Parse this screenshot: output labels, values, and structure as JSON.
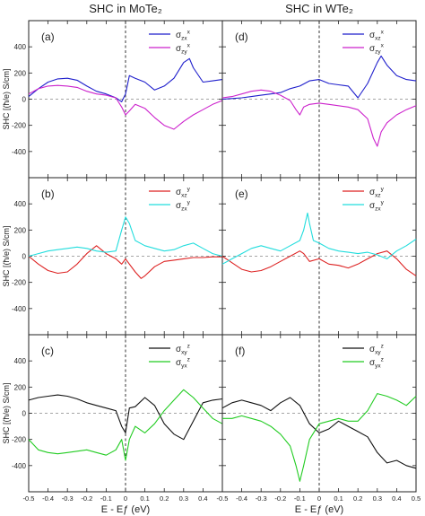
{
  "figure": {
    "col_titles": [
      "SHC in MoTe₂",
      "SHC in WTe₂"
    ],
    "ylabel": "SHC [(ħ/e) S/cm]",
    "xlabel": "E - Eƒ (eV)"
  },
  "chart_data": [
    {
      "type": "line",
      "panel": "(a)",
      "material": "MoTe2",
      "xlim": [
        -0.5,
        0.5
      ],
      "ylim": [
        -600,
        600
      ],
      "xticks": [
        -0.5,
        -0.4,
        -0.3,
        -0.2,
        -0.1,
        0.0,
        0.1,
        0.2,
        0.3,
        0.4
      ],
      "yticks": [
        -400,
        -200,
        0,
        200,
        400
      ],
      "series": [
        {
          "name": "σzx^x",
          "color": "#1f1fcc",
          "x": [
            -0.5,
            -0.45,
            -0.4,
            -0.35,
            -0.3,
            -0.25,
            -0.2,
            -0.15,
            -0.1,
            -0.05,
            -0.02,
            0,
            0.02,
            0.05,
            0.1,
            0.15,
            0.2,
            0.25,
            0.3,
            0.33,
            0.35,
            0.4,
            0.45,
            0.5
          ],
          "y": [
            20,
            80,
            130,
            155,
            160,
            145,
            100,
            60,
            40,
            10,
            -20,
            40,
            180,
            160,
            130,
            70,
            100,
            160,
            280,
            310,
            240,
            130,
            140,
            150
          ]
        },
        {
          "name": "σzy^x",
          "color": "#cc22cc",
          "x": [
            -0.5,
            -0.45,
            -0.4,
            -0.35,
            -0.3,
            -0.25,
            -0.2,
            -0.15,
            -0.1,
            -0.05,
            -0.02,
            0,
            0.02,
            0.05,
            0.1,
            0.15,
            0.2,
            0.25,
            0.3,
            0.35,
            0.4,
            0.45,
            0.5
          ],
          "y": [
            40,
            80,
            100,
            105,
            100,
            90,
            60,
            40,
            30,
            10,
            -60,
            -120,
            -90,
            -40,
            -70,
            -140,
            -200,
            -230,
            -170,
            -120,
            -80,
            -40,
            -10
          ]
        }
      ]
    },
    {
      "type": "line",
      "panel": "(d)",
      "material": "WTe2",
      "xlim": [
        -0.5,
        0.5
      ],
      "ylim": [
        -600,
        600
      ],
      "xticks": [
        -0.5,
        -0.4,
        -0.3,
        -0.2,
        -0.1,
        0.0,
        0.1,
        0.2,
        0.3,
        0.4,
        0.5
      ],
      "yticks": [
        -400,
        -200,
        0,
        200,
        400
      ],
      "series": [
        {
          "name": "σxz^x",
          "color": "#1f1fcc",
          "x": [
            -0.5,
            -0.45,
            -0.4,
            -0.35,
            -0.3,
            -0.25,
            -0.2,
            -0.15,
            -0.1,
            -0.05,
            0,
            0.05,
            0.1,
            0.15,
            0.2,
            0.25,
            0.3,
            0.32,
            0.35,
            0.4,
            0.45,
            0.5
          ],
          "y": [
            0,
            5,
            10,
            20,
            30,
            40,
            50,
            80,
            100,
            140,
            150,
            120,
            110,
            100,
            10,
            120,
            280,
            330,
            260,
            180,
            150,
            140
          ]
        },
        {
          "name": "σzy^x",
          "color": "#cc22cc",
          "x": [
            -0.5,
            -0.45,
            -0.4,
            -0.35,
            -0.3,
            -0.25,
            -0.2,
            -0.15,
            -0.12,
            -0.1,
            -0.08,
            -0.05,
            0,
            0.05,
            0.1,
            0.15,
            0.2,
            0.25,
            0.28,
            0.3,
            0.32,
            0.35,
            0.4,
            0.45,
            0.5
          ],
          "y": [
            10,
            20,
            40,
            60,
            70,
            60,
            30,
            -10,
            -80,
            -120,
            -60,
            -40,
            -30,
            -40,
            -50,
            -60,
            -80,
            -150,
            -300,
            -360,
            -250,
            -180,
            -120,
            -80,
            -50
          ]
        }
      ]
    },
    {
      "type": "line",
      "panel": "(b)",
      "material": "MoTe2",
      "xlim": [
        -0.5,
        0.5
      ],
      "ylim": [
        -600,
        600
      ],
      "xticks": [
        -0.5,
        -0.4,
        -0.3,
        -0.2,
        -0.1,
        0.0,
        0.1,
        0.2,
        0.3,
        0.4
      ],
      "yticks": [
        -400,
        -200,
        0,
        200,
        400
      ],
      "series": [
        {
          "name": "σxz^y",
          "color": "#dd2222",
          "x": [
            -0.5,
            -0.45,
            -0.4,
            -0.35,
            -0.3,
            -0.25,
            -0.2,
            -0.15,
            -0.1,
            -0.05,
            -0.02,
            0,
            0.02,
            0.05,
            0.08,
            0.1,
            0.15,
            0.2,
            0.25,
            0.3,
            0.35,
            0.4,
            0.45,
            0.5
          ],
          "y": [
            0,
            -60,
            -110,
            -130,
            -120,
            -60,
            20,
            80,
            20,
            -20,
            -60,
            -20,
            -60,
            -120,
            -170,
            -150,
            -80,
            -40,
            -30,
            -20,
            -10,
            -10,
            -5,
            -5
          ]
        },
        {
          "name": "σzx^y",
          "color": "#22dddd",
          "x": [
            -0.5,
            -0.45,
            -0.4,
            -0.35,
            -0.3,
            -0.25,
            -0.2,
            -0.15,
            -0.1,
            -0.05,
            -0.02,
            0,
            0.02,
            0.05,
            0.1,
            0.15,
            0.2,
            0.25,
            0.3,
            0.35,
            0.4,
            0.45,
            0.5
          ],
          "y": [
            0,
            20,
            40,
            50,
            60,
            70,
            60,
            40,
            30,
            40,
            200,
            300,
            250,
            120,
            80,
            60,
            40,
            50,
            80,
            100,
            60,
            20,
            0
          ]
        }
      ]
    },
    {
      "type": "line",
      "panel": "(e)",
      "material": "WTe2",
      "xlim": [
        -0.5,
        0.5
      ],
      "ylim": [
        -600,
        600
      ],
      "xticks": [
        -0.5,
        -0.4,
        -0.3,
        -0.2,
        -0.1,
        0.0,
        0.1,
        0.2,
        0.3,
        0.4,
        0.5
      ],
      "yticks": [
        -400,
        -200,
        0,
        200,
        400
      ],
      "series": [
        {
          "name": "σxz^y",
          "color": "#dd2222",
          "x": [
            -0.5,
            -0.45,
            -0.4,
            -0.35,
            -0.3,
            -0.25,
            -0.2,
            -0.15,
            -0.1,
            -0.08,
            -0.05,
            0,
            0.05,
            0.1,
            0.15,
            0.2,
            0.25,
            0.3,
            0.35,
            0.4,
            0.45,
            0.5
          ],
          "y": [
            0,
            -50,
            -100,
            -120,
            -110,
            -80,
            -40,
            0,
            40,
            20,
            -40,
            -20,
            -60,
            -70,
            -90,
            -60,
            -20,
            20,
            40,
            -20,
            -100,
            -150
          ]
        },
        {
          "name": "σzx^y",
          "color": "#22dddd",
          "x": [
            -0.5,
            -0.45,
            -0.4,
            -0.35,
            -0.3,
            -0.25,
            -0.2,
            -0.15,
            -0.1,
            -0.08,
            -0.06,
            -0.05,
            -0.03,
            0,
            0.05,
            0.1,
            0.15,
            0.2,
            0.25,
            0.3,
            0.35,
            0.4,
            0.45,
            0.5
          ],
          "y": [
            -60,
            -20,
            20,
            60,
            80,
            60,
            40,
            80,
            120,
            200,
            330,
            250,
            120,
            100,
            60,
            40,
            30,
            20,
            30,
            10,
            -20,
            40,
            80,
            130
          ]
        }
      ]
    },
    {
      "type": "line",
      "panel": "(c)",
      "material": "MoTe2",
      "xlim": [
        -0.5,
        0.5
      ],
      "ylim": [
        -600,
        600
      ],
      "xticks": [
        -0.5,
        -0.4,
        -0.3,
        -0.2,
        -0.1,
        0.0,
        0.1,
        0.2,
        0.3,
        0.4
      ],
      "yticks": [
        -400,
        -200,
        0,
        200,
        400
      ],
      "series": [
        {
          "name": "σxy^z",
          "color": "#111111",
          "x": [
            -0.5,
            -0.45,
            -0.4,
            -0.35,
            -0.3,
            -0.25,
            -0.2,
            -0.15,
            -0.1,
            -0.05,
            -0.02,
            0,
            0.02,
            0.05,
            0.1,
            0.15,
            0.2,
            0.25,
            0.3,
            0.35,
            0.4,
            0.45,
            0.5
          ],
          "y": [
            100,
            120,
            130,
            140,
            130,
            110,
            80,
            60,
            40,
            20,
            -100,
            -150,
            40,
            50,
            120,
            60,
            -80,
            -160,
            -200,
            -60,
            80,
            100,
            110
          ]
        },
        {
          "name": "σyx^z",
          "color": "#22cc22",
          "x": [
            -0.5,
            -0.45,
            -0.4,
            -0.35,
            -0.3,
            -0.25,
            -0.2,
            -0.15,
            -0.1,
            -0.05,
            -0.02,
            0,
            0.02,
            0.05,
            0.1,
            0.15,
            0.2,
            0.25,
            0.3,
            0.35,
            0.4,
            0.45,
            0.5
          ],
          "y": [
            -200,
            -280,
            -300,
            -310,
            -300,
            -290,
            -280,
            -300,
            -320,
            -280,
            -200,
            -360,
            -200,
            -100,
            -150,
            -80,
            20,
            100,
            180,
            120,
            40,
            -40,
            -80
          ]
        }
      ]
    },
    {
      "type": "line",
      "panel": "(f)",
      "material": "WTe2",
      "xlim": [
        -0.5,
        0.5
      ],
      "ylim": [
        -600,
        600
      ],
      "xticks": [
        -0.5,
        -0.4,
        -0.3,
        -0.2,
        -0.1,
        0.0,
        0.1,
        0.2,
        0.3,
        0.4,
        0.5
      ],
      "yticks": [
        -400,
        -200,
        0,
        200,
        400
      ],
      "series": [
        {
          "name": "σxy^z",
          "color": "#111111",
          "x": [
            -0.5,
            -0.45,
            -0.4,
            -0.35,
            -0.3,
            -0.25,
            -0.2,
            -0.15,
            -0.1,
            -0.05,
            0,
            0.05,
            0.1,
            0.15,
            0.2,
            0.25,
            0.3,
            0.35,
            0.4,
            0.45,
            0.5
          ],
          "y": [
            40,
            80,
            100,
            80,
            60,
            20,
            80,
            120,
            60,
            -80,
            -150,
            -120,
            -60,
            -100,
            -140,
            -180,
            -300,
            -380,
            -360,
            -400,
            -420
          ]
        },
        {
          "name": "σyx^z",
          "color": "#22cc22",
          "x": [
            -0.5,
            -0.45,
            -0.4,
            -0.35,
            -0.3,
            -0.25,
            -0.2,
            -0.15,
            -0.12,
            -0.1,
            -0.08,
            -0.05,
            0,
            0.05,
            0.1,
            0.15,
            0.2,
            0.25,
            0.3,
            0.35,
            0.4,
            0.45,
            0.5
          ],
          "y": [
            -40,
            -40,
            -20,
            -40,
            -60,
            -100,
            -160,
            -250,
            -400,
            -520,
            -400,
            -200,
            -80,
            -60,
            -40,
            -60,
            -60,
            20,
            150,
            130,
            100,
            60,
            130
          ]
        }
      ]
    }
  ]
}
